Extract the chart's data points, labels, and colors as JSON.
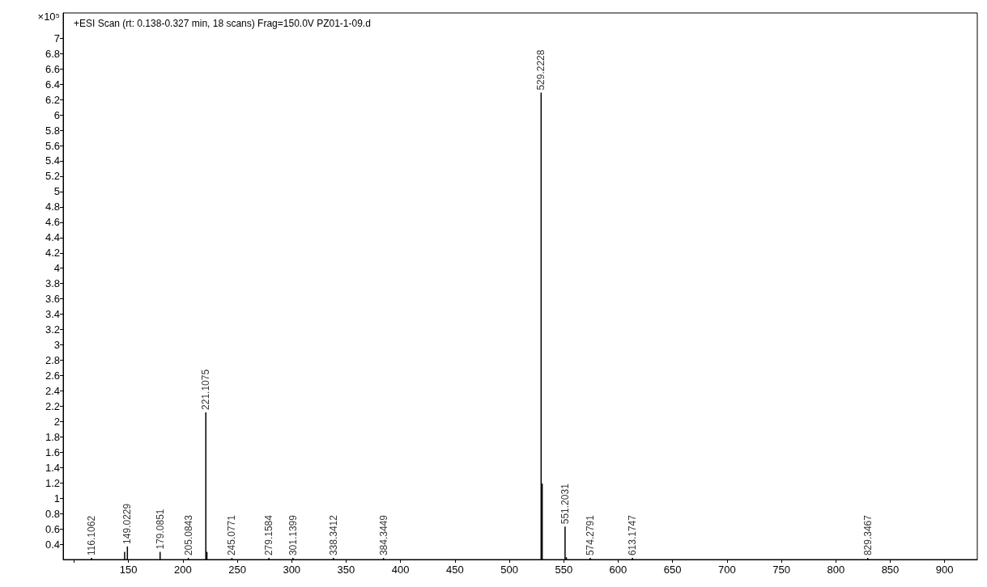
{
  "chart_data": {
    "type": "bar",
    "title": "+ESI Scan (rt: 0.138-0.327 min, 18 scans) Frag=150.0V PZ01-1-09.d",
    "ylabel": "×10⁵",
    "x": [
      116.1062,
      146.5,
      149.0229,
      179.0851,
      205.0843,
      221.1075,
      222.1,
      245.0771,
      279.1584,
      301.1399,
      338.3412,
      384.3449,
      529.2228,
      530.2,
      551.2031,
      552.4,
      574.2791,
      613.1747,
      829.3467
    ],
    "values": [
      0.22,
      0.3,
      0.37,
      0.3,
      0.22,
      2.12,
      0.3,
      0.22,
      0.22,
      0.22,
      0.22,
      0.22,
      6.29,
      1.19,
      0.63,
      0.23,
      0.22,
      0.22,
      0.22
    ],
    "annotations": [
      {
        "text": "116.1062",
        "x": 116.1062,
        "y": 0.22
      },
      {
        "text": "149.0229",
        "x": 149.0229,
        "y": 0.37
      },
      {
        "text": "179.0851",
        "x": 179.0851,
        "y": 0.3
      },
      {
        "text": "205.0843",
        "x": 205.0843,
        "y": 0.22
      },
      {
        "text": "221.1075",
        "x": 221.1075,
        "y": 2.12
      },
      {
        "text": "245.0771",
        "x": 245.0771,
        "y": 0.22
      },
      {
        "text": "279.1584",
        "x": 279.1584,
        "y": 0.22
      },
      {
        "text": "301.1399",
        "x": 301.1399,
        "y": 0.22
      },
      {
        "text": "338.3412",
        "x": 338.3412,
        "y": 0.22
      },
      {
        "text": "384.3449",
        "x": 384.3449,
        "y": 0.22
      },
      {
        "text": "529.2228",
        "x": 529.2228,
        "y": 6.29
      },
      {
        "text": "551.2031",
        "x": 551.2031,
        "y": 0.63
      },
      {
        "text": "574.2791",
        "x": 574.2791,
        "y": 0.22
      },
      {
        "text": "613.1747",
        "x": 613.1747,
        "y": 0.22
      },
      {
        "text": "829.3467",
        "x": 829.3467,
        "y": 0.22
      }
    ],
    "color": "#000000",
    "xlim": [
      90,
      930
    ],
    "xticks": [
      {
        "value": 100,
        "label": null
      },
      150,
      200,
      250,
      300,
      350,
      400,
      450,
      500,
      550,
      600,
      650,
      700,
      750,
      800,
      850,
      900
    ],
    "ylim": [
      0.2,
      7.33
    ],
    "yticks": [
      0.4,
      0.6,
      0.8,
      1,
      1.2,
      1.4,
      1.6,
      1.8,
      2,
      2.2,
      2.4,
      2.6,
      2.8,
      3,
      3.2,
      3.4,
      3.6,
      3.8,
      4,
      4.2,
      4.4,
      4.6,
      4.8,
      5,
      5.2,
      5.4,
      5.6,
      5.8,
      6,
      6.2,
      6.4,
      6.6,
      6.8,
      7
    ],
    "grid": false
  }
}
